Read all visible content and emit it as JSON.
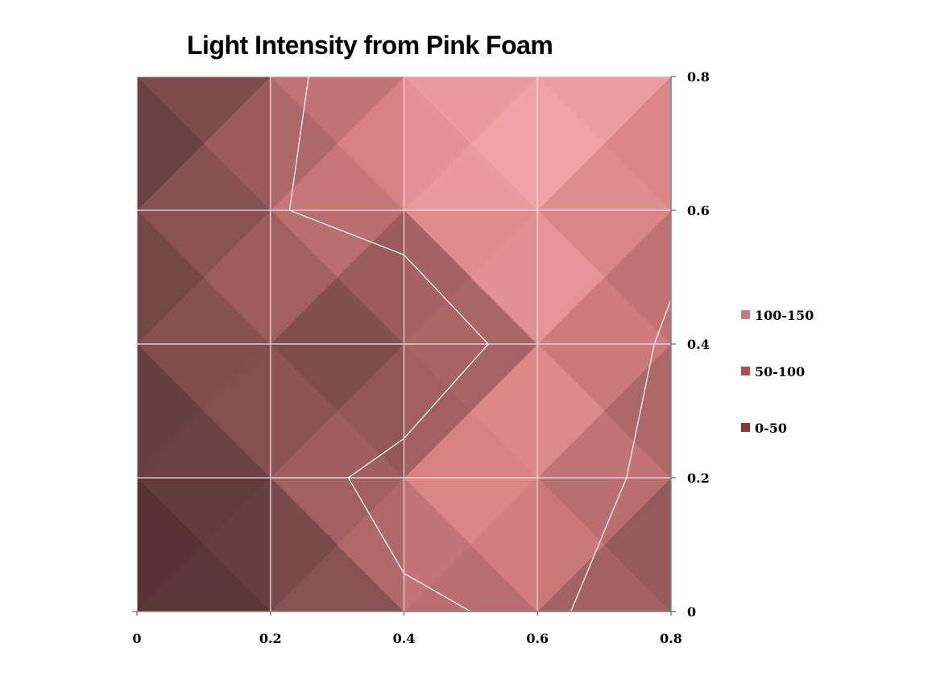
{
  "chart_data": {
    "type": "heatmap",
    "subtype": "surface-contour",
    "title": "Light Intensity from Pink Foam",
    "x_ticks": [
      "0",
      "0.2",
      "0.4",
      "0.6",
      "0.8"
    ],
    "y_ticks": [
      "0",
      "0.2",
      "0.4",
      "0.6",
      "0.8"
    ],
    "xlim": [
      0,
      0.8
    ],
    "ylim": [
      0,
      0.8
    ],
    "y_axis_side": "right",
    "grid": true,
    "legend_position": "right",
    "x": [
      0,
      0.2,
      0.4,
      0.6,
      0.8
    ],
    "y": [
      0,
      0.2,
      0.4,
      0.6,
      0.8
    ],
    "z": [
      [
        35,
        55,
        90,
        110,
        70
      ],
      [
        45,
        65,
        125,
        130,
        85
      ],
      [
        60,
        90,
        40,
        135,
        95
      ],
      [
        60,
        95,
        130,
        140,
        110
      ],
      [
        45,
        90,
        125,
        145,
        130
      ]
    ],
    "legend": [
      {
        "label": "100-150",
        "color": "#c97a7a"
      },
      {
        "label": "50-100",
        "color": "#b34d4d"
      },
      {
        "label": "0-50",
        "color": "#8c3535"
      }
    ],
    "contour_level": 100,
    "colors": {
      "grid": "#e6e6e6",
      "axis": "#808080",
      "contour": "#ffffff"
    }
  }
}
